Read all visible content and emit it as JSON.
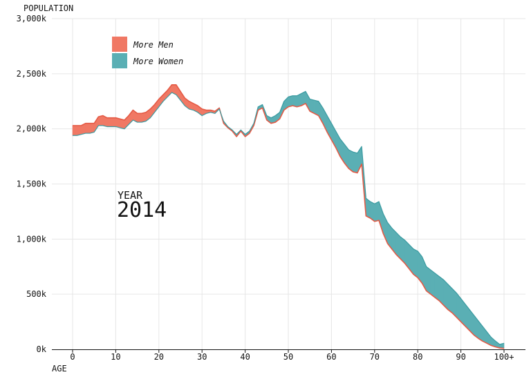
{
  "chart_data": {
    "type": "area",
    "title": "",
    "ylabel": "POPULATION",
    "xlabel": "AGE",
    "ylim": [
      0,
      3000
    ],
    "xlim": [
      0,
      100
    ],
    "y_ticks": [
      0,
      500,
      1000,
      1500,
      2000,
      2500,
      3000
    ],
    "y_tick_labels": [
      "0k",
      "500k",
      "1,000k",
      "1,500k",
      "2,000k",
      "2,500k",
      "3,000k"
    ],
    "x_ticks": [
      0,
      10,
      20,
      30,
      40,
      50,
      60,
      70,
      80,
      90,
      100
    ],
    "x_tick_labels": [
      "0",
      "10",
      "20",
      "30",
      "40",
      "50",
      "60",
      "70",
      "80",
      "90",
      "100+"
    ],
    "grid": true,
    "legend_position": "top-left",
    "year_label": "YEAR",
    "year": "2014",
    "colors": {
      "men": "#f07864",
      "women": "#5aafb4",
      "men_line": "#e45a45",
      "women_line": "#3a9aa0"
    },
    "series": [
      {
        "name": "More Men",
        "color": "#f07864"
      },
      {
        "name": "More Women",
        "color": "#5aafb4"
      }
    ],
    "ages": [
      0,
      1,
      2,
      3,
      4,
      5,
      6,
      7,
      8,
      9,
      10,
      11,
      12,
      13,
      14,
      15,
      16,
      17,
      18,
      19,
      20,
      21,
      22,
      23,
      24,
      25,
      26,
      27,
      28,
      29,
      30,
      31,
      32,
      33,
      34,
      35,
      36,
      37,
      38,
      39,
      40,
      41,
      42,
      43,
      44,
      45,
      46,
      47,
      48,
      49,
      50,
      51,
      52,
      53,
      54,
      55,
      56,
      57,
      58,
      59,
      60,
      61,
      62,
      63,
      64,
      65,
      66,
      67,
      68,
      69,
      70,
      71,
      72,
      73,
      74,
      75,
      76,
      77,
      78,
      79,
      80,
      81,
      82,
      83,
      84,
      85,
      86,
      87,
      88,
      89,
      90,
      91,
      92,
      93,
      94,
      95,
      96,
      97,
      98,
      99,
      100
    ],
    "men": [
      2030,
      2030,
      2030,
      2050,
      2050,
      2050,
      2110,
      2120,
      2100,
      2100,
      2100,
      2090,
      2080,
      2120,
      2170,
      2140,
      2140,
      2150,
      2180,
      2220,
      2270,
      2310,
      2350,
      2400,
      2400,
      2340,
      2280,
      2250,
      2230,
      2210,
      2180,
      2170,
      2170,
      2160,
      2190,
      2050,
      2010,
      1980,
      1930,
      1980,
      1930,
      1960,
      2030,
      2170,
      2190,
      2080,
      2050,
      2060,
      2090,
      2170,
      2200,
      2210,
      2200,
      2210,
      2230,
      2160,
      2140,
      2120,
      2050,
      1970,
      1900,
      1830,
      1750,
      1690,
      1640,
      1610,
      1600,
      1680,
      1210,
      1190,
      1160,
      1170,
      1050,
      960,
      910,
      860,
      820,
      780,
      730,
      680,
      650,
      600,
      530,
      500,
      470,
      440,
      400,
      360,
      330,
      290,
      250,
      210,
      170,
      130,
      100,
      75,
      55,
      35,
      22,
      12,
      8
    ],
    "women": [
      1940,
      1940,
      1950,
      1960,
      1960,
      1970,
      2030,
      2030,
      2020,
      2020,
      2020,
      2010,
      2000,
      2040,
      2080,
      2060,
      2060,
      2070,
      2100,
      2150,
      2200,
      2250,
      2290,
      2330,
      2310,
      2260,
      2210,
      2180,
      2170,
      2150,
      2120,
      2140,
      2150,
      2140,
      2180,
      2070,
      2020,
      1990,
      1950,
      1990,
      1950,
      1980,
      2050,
      2200,
      2220,
      2120,
      2100,
      2120,
      2150,
      2250,
      2290,
      2300,
      2300,
      2320,
      2340,
      2270,
      2260,
      2250,
      2190,
      2120,
      2050,
      1980,
      1910,
      1860,
      1810,
      1790,
      1780,
      1840,
      1370,
      1340,
      1320,
      1340,
      1230,
      1150,
      1100,
      1060,
      1020,
      990,
      950,
      910,
      890,
      840,
      750,
      720,
      690,
      660,
      630,
      590,
      550,
      510,
      460,
      410,
      360,
      310,
      260,
      210,
      160,
      110,
      75,
      45,
      55
    ]
  }
}
